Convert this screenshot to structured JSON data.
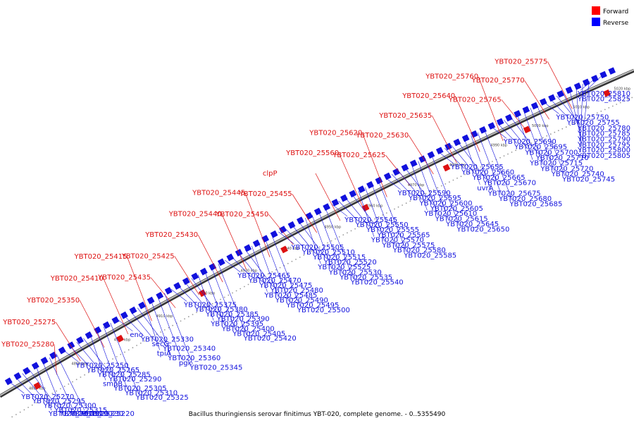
{
  "caption": "Bacillus thuringiensis serovar finitimus YBT-020, complete genome. - 0..5355490",
  "legend": [
    {
      "label": "Forward",
      "color": "#ff0000"
    },
    {
      "label": "Reverse",
      "color": "#0000ff"
    }
  ],
  "colors": {
    "forward": "#dd1111",
    "reverse": "#1111dd",
    "backbone": "#888888"
  },
  "ticks": [
    "4880 kbp",
    "4890 kbp",
    "4900 kbp",
    "4910 kbp",
    "4920 kbp",
    "4930 kbp",
    "4940 kbp",
    "4950 kbp",
    "4960 kbp",
    "4970 kbp",
    "4980 kbp",
    "4990 kbp",
    "5000 kbp",
    "5010 kbp",
    "5020 kbp"
  ],
  "forward_labels": [
    "YBT020_25280",
    "YBT020_25275",
    "YBT020_25350",
    "YBT020_25410",
    "YBT020_25415",
    "YBT020_25435",
    "YBT020_25425",
    "YBT020_25430",
    "YBT020_25440",
    "YBT020_25445",
    "YBT020_25450",
    "YBT020_25455",
    "clpP",
    "YBT020_25560",
    "YBT020_25620",
    "YBT020_25625",
    "YBT020_25630",
    "YBT020_25635",
    "YBT020_25640",
    "YBT020_25760",
    "YBT020_25765",
    "YBT020_25770",
    "YBT020_25775"
  ],
  "reverse_labels": [
    "YBT020_25270",
    "YBT020_25295",
    "YBT020_25300",
    "YBT020_25315",
    "YBT020_25185",
    "YBT020_25190",
    "YBT020_25230",
    "YBT020_25220",
    "YBT020_25250",
    "YBT020_25265",
    "YBT020_25285",
    "YBT020_25290",
    "smpB",
    "YBT020_25305",
    "YBT020_25310",
    "YBT020_25325",
    "eno",
    "YBT020_25330",
    "secG",
    "YBT020_25340",
    "tpiA",
    "YBT020_25360",
    "pgk",
    "YBT020_25345",
    "YBT020_25375",
    "YBT020_25380",
    "YBT020_25385",
    "YBT020_25390",
    "YBT020_25395",
    "YBT020_25400",
    "YBT020_25405",
    "YBT020_25420",
    "YBT020_25465",
    "YBT020_25470",
    "YBT020_25475",
    "YBT020_25480",
    "YBT020_25485",
    "YBT020_25490",
    "YBT020_25495",
    "YBT020_25500",
    "YBT020_25505",
    "YBT020_25510",
    "YBT020_25515",
    "YBT020_25520",
    "YBT020_25525",
    "YBT020_25530",
    "YBT020_25535",
    "YBT020_25540",
    "YBT020_25545",
    "YBT020_25550",
    "YBT020_25555",
    "YBT020_25565",
    "YBT020_25570",
    "YBT020_25575",
    "YBT020_25580",
    "YBT020_25585",
    "YBT020_25590",
    "YBT020_25595",
    "YBT020_25600",
    "YBT020_25605",
    "YBT020_25610",
    "YBT020_25615",
    "YBT020_25645",
    "YBT020_25650",
    "YBT020_25655",
    "YBT020_25660",
    "YBT020_25665",
    "YBT020_25670",
    "uvrA",
    "YBT020_25675",
    "YBT020_25680",
    "YBT020_25685",
    "YBT020_25690",
    "YBT020_25695",
    "YBT020_25700",
    "YBT020_25710",
    "YBT020_25715",
    "YBT020_25720",
    "YBT020_25740",
    "YBT020_25745",
    "YBT020_25750",
    "YBT020_25755",
    "YBT020_25780",
    "YBT020_25785",
    "YBT020_25790",
    "YBT020_25795",
    "YBT020_25800",
    "YBT020_25805",
    "YBT020_25810",
    "YBT020_25825"
  ]
}
